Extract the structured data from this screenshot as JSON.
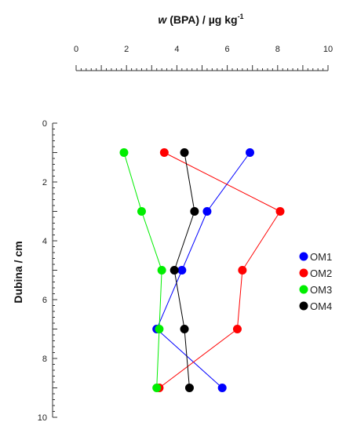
{
  "chart_data": {
    "type": "line",
    "xlabel_var": "w",
    "xlabel_rest": " (BPA) / µg kg",
    "xlabel_sup": "-1",
    "ylabel": "Dubina / cm",
    "xlim": [
      0,
      10
    ],
    "ylim": [
      0,
      10
    ],
    "x_ticks": [
      "0",
      "2",
      "4",
      "6",
      "8",
      "10"
    ],
    "y_ticks": [
      "0",
      "2",
      "4",
      "6",
      "8",
      "10"
    ],
    "y_inverted": true,
    "x_axis_position": "top",
    "legend_position": "right",
    "series": [
      {
        "name": "OM1",
        "color": "#0000ff",
        "points": [
          [
            6.9,
            1
          ],
          [
            5.2,
            3
          ],
          [
            4.2,
            5
          ],
          [
            3.2,
            7
          ],
          [
            5.8,
            9
          ]
        ]
      },
      {
        "name": "OM2",
        "color": "#ff0000",
        "points": [
          [
            3.5,
            1
          ],
          [
            8.1,
            3
          ],
          [
            6.6,
            5
          ],
          [
            6.4,
            7
          ],
          [
            3.3,
            9
          ]
        ]
      },
      {
        "name": "OM3",
        "color": "#00ee00",
        "points": [
          [
            1.9,
            1
          ],
          [
            2.6,
            3
          ],
          [
            3.4,
            5
          ],
          [
            3.3,
            7
          ],
          [
            3.2,
            9
          ]
        ]
      },
      {
        "name": "OM4",
        "color": "#000000",
        "points": [
          [
            4.3,
            1
          ],
          [
            4.7,
            3
          ],
          [
            3.9,
            5
          ],
          [
            4.3,
            7
          ],
          [
            4.5,
            9
          ]
        ]
      }
    ]
  }
}
